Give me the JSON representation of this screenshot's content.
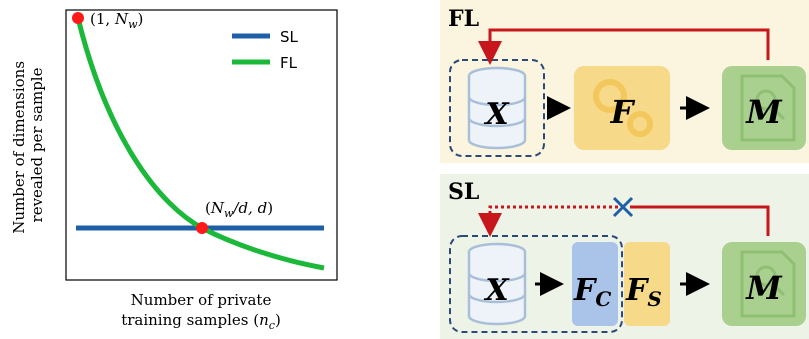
{
  "chart": {
    "ylabel_line1": "Number of dimensions",
    "ylabel_line2": "revealed per sample",
    "xlabel_line1": "Number of private",
    "xlabel_line2": "training samples (",
    "xlabel_var": "n",
    "xlabel_sub": "c",
    "xlabel_close": ")",
    "legend": [
      {
        "label": "SL",
        "color": "#1f5fa8"
      },
      {
        "label": "FL",
        "color": "#1bb83a"
      }
    ],
    "point_top": {
      "open": "(1, ",
      "var": "N",
      "sub": "w",
      "close": ")"
    },
    "point_mid": {
      "open": "(",
      "var": "N",
      "sub": "w",
      "mid": "/d, d",
      "close": ")"
    }
  },
  "chart_data": {
    "type": "line",
    "xlabel": "Number of private training samples (n_c)",
    "ylabel": "Number of dimensions revealed per sample",
    "series": [
      {
        "name": "SL",
        "color": "#1f5fa8",
        "shape": "constant"
      },
      {
        "name": "FL",
        "color": "#1bb83a",
        "shape": "decreasing hyperbola"
      }
    ],
    "annotations": [
      "(1, N_w)",
      "(N_w/d, d)"
    ],
    "grid": false,
    "legend": "top-right"
  },
  "fl_panel": {
    "title": "FL",
    "data_node": "X",
    "model_node": "F",
    "output_node": "M",
    "bg_color": "#fbf4df"
  },
  "sl_panel": {
    "title": "SL",
    "data_node": "X",
    "client_node": "F",
    "client_sub": "C",
    "server_node": "F",
    "server_sub": "S",
    "output_node": "M",
    "bg_color": "#eef3e8"
  },
  "colors": {
    "arrow_red": "#c8161d",
    "dashed_border": "#2b4a7a",
    "gear_yellow": "#f7d98a",
    "doc_green": "#a9d08e",
    "client_blue": "#a9c4e8",
    "cross_blue": "#1f5fa8"
  }
}
